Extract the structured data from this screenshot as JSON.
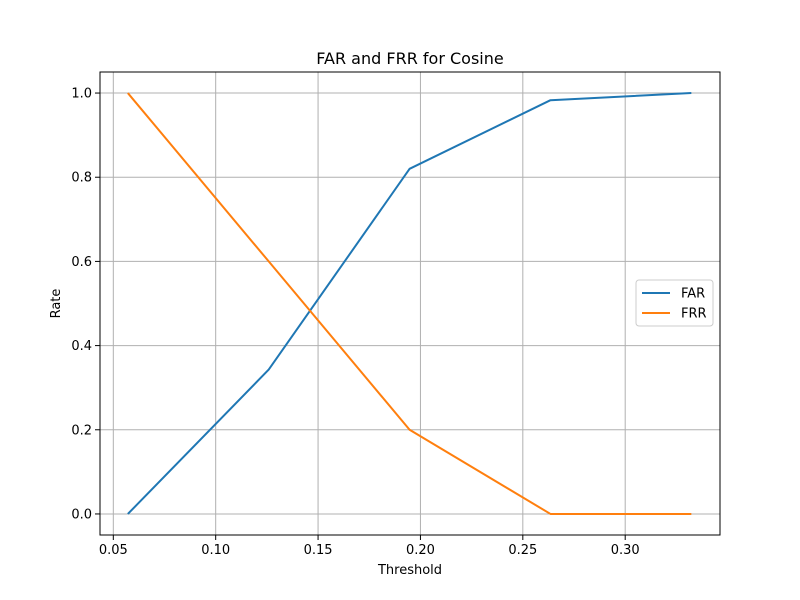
{
  "chart_data": {
    "type": "line",
    "title": "FAR and FRR for Cosine",
    "xlabel": "Threshold",
    "ylabel": "Rate",
    "xlim": [
      0.0435,
      0.3463
    ],
    "ylim": [
      -0.05,
      1.05
    ],
    "xticks": [
      0.05,
      0.1,
      0.15,
      0.2,
      0.25,
      0.3
    ],
    "xtick_labels": [
      "0.05",
      "0.10",
      "0.15",
      "0.20",
      "0.25",
      "0.30"
    ],
    "yticks": [
      0.0,
      0.2,
      0.4,
      0.6,
      0.8,
      1.0
    ],
    "ytick_labels": [
      "0.0",
      "0.2",
      "0.4",
      "0.6",
      "0.8",
      "1.0"
    ],
    "grid": true,
    "legend_position": "center-right",
    "x": [
      0.0571,
      0.1259,
      0.1947,
      0.2635,
      0.3323
    ],
    "series": [
      {
        "name": "FAR",
        "color": "#1f77b4",
        "values": [
          0.0,
          0.343,
          0.82,
          0.983,
          1.0
        ]
      },
      {
        "name": "FRR",
        "color": "#ff7f0e",
        "values": [
          1.0,
          0.6,
          0.2,
          0.0,
          0.0
        ]
      }
    ]
  }
}
